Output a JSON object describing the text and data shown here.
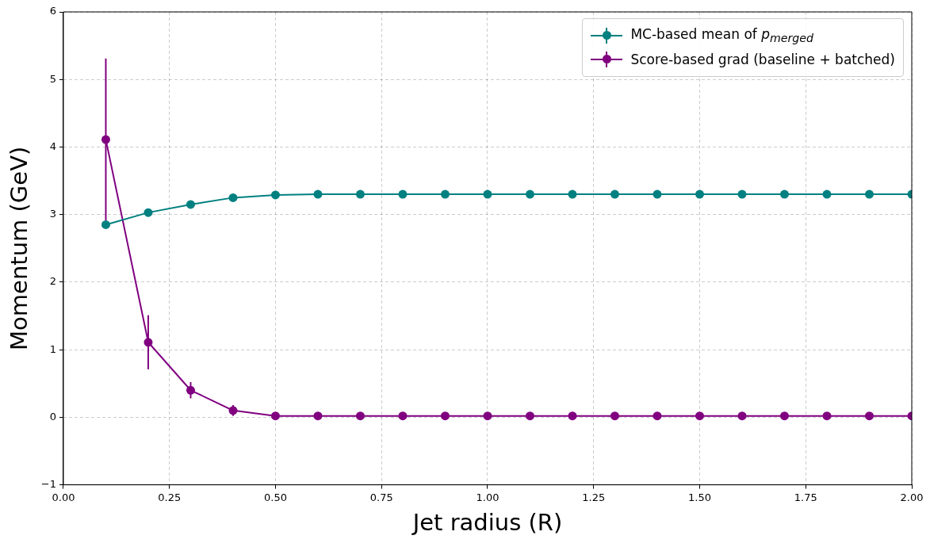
{
  "chart_data": {
    "type": "line",
    "xlabel": "Jet radius (R)",
    "ylabel": "Momentum (GeV)",
    "x": [
      0.1,
      0.2,
      0.3,
      0.4,
      0.5,
      0.6,
      0.7,
      0.8,
      0.9,
      1.0,
      1.1,
      1.2,
      1.3,
      1.4,
      1.5,
      1.6,
      1.7,
      1.8,
      1.9,
      2.0
    ],
    "series": [
      {
        "name": "MC-based mean of p$_{merged}$",
        "color": "#008080",
        "values": [
          2.85,
          3.03,
          3.15,
          3.25,
          3.29,
          3.3,
          3.3,
          3.3,
          3.3,
          3.3,
          3.3,
          3.3,
          3.3,
          3.3,
          3.3,
          3.3,
          3.3,
          3.3,
          3.3,
          3.3
        ]
      },
      {
        "name": "Score-based grad (baseline + batched)",
        "color": "#800080",
        "values": [
          4.11,
          1.11,
          0.4,
          0.1,
          0.02,
          0.02,
          0.02,
          0.02,
          0.02,
          0.02,
          0.02,
          0.02,
          0.02,
          0.02,
          0.02,
          0.02,
          0.02,
          0.02,
          0.02,
          0.02
        ],
        "errors": [
          1.2,
          0.4,
          0.12,
          0.08,
          null,
          null,
          null,
          null,
          null,
          null,
          null,
          null,
          null,
          null,
          null,
          null,
          null,
          null,
          null,
          null
        ]
      }
    ],
    "xlim": [
      0,
      2
    ],
    "xticks": [
      {
        "value": 0,
        "label": "0.00"
      },
      {
        "value": 0.25,
        "label": "0.25"
      },
      {
        "value": 0.5,
        "label": "0.50"
      },
      {
        "value": 0.75,
        "label": "0.75"
      },
      {
        "value": 1,
        "label": "1.00"
      },
      {
        "value": 1.25,
        "label": "1.25"
      },
      {
        "value": 1.5,
        "label": "1.50"
      },
      {
        "value": 1.75,
        "label": "1.75"
      },
      {
        "value": 2,
        "label": "2.00"
      }
    ],
    "ylim": [
      -1,
      6
    ],
    "yticks": [
      {
        "value": -1,
        "label": "−1"
      },
      0,
      1,
      2,
      3,
      4,
      5,
      6
    ],
    "grid": true,
    "legend": "top right",
    "marker": "circle",
    "line_style": "solid"
  }
}
